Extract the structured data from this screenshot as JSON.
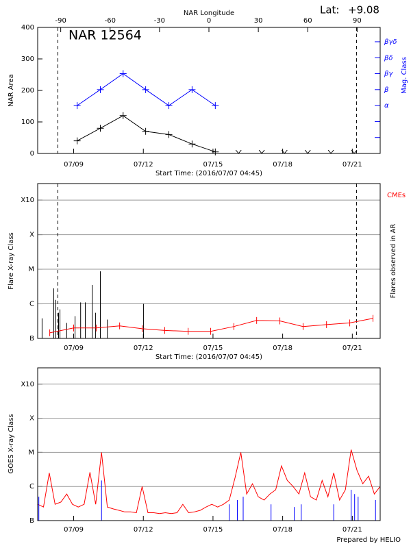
{
  "chart_data": [
    {
      "type": "line",
      "title": "NAR 12564",
      "lat_label": "Lat:",
      "lat_value": "+9.08",
      "x2label": "NAR Longitude",
      "ylabel": "NAR Area",
      "y2label": "Mag. Class",
      "xlabel": "Start Time: (2016/07/07 04:45)",
      "xlim": [
        0.25,
        15
      ],
      "xticks": [
        {
          "value": 1.8,
          "label": "07/09"
        },
        {
          "value": 4.8,
          "label": "07/12"
        },
        {
          "value": 7.8,
          "label": "07/15"
        },
        {
          "value": 10.8,
          "label": "07/18"
        },
        {
          "value": 13.8,
          "label": "07/21"
        }
      ],
      "x2lim": [
        -104,
        104
      ],
      "x2ticks": [
        -90,
        -60,
        -30,
        0,
        30,
        60,
        90
      ],
      "ylim": [
        0,
        400
      ],
      "yticks": [
        0,
        100,
        200,
        300,
        400
      ],
      "y2lim": [
        0,
        7.9
      ],
      "y2color": "#0000ff",
      "y2ticks": [
        {
          "value": 3,
          "label": "α"
        },
        {
          "value": 4,
          "label": "β"
        },
        {
          "value": 5,
          "label": "βγ"
        },
        {
          "value": 6,
          "label": "βδ"
        },
        {
          "value": 7,
          "label": "βγδ"
        }
      ],
      "y2minor_ticks": [
        1,
        2
      ],
      "vlines": [
        1.12,
        13.98
      ],
      "series": [
        {
          "kind": "line",
          "marker": "plus",
          "color": "#000000",
          "x": [
            1.95,
            2.95,
            3.93,
            4.9,
            5.9,
            6.9,
            7.9
          ],
          "values": [
            40,
            80,
            120,
            70,
            60,
            30,
            5
          ]
        },
        {
          "kind": "line",
          "marker": "plus",
          "color": "#0000ff",
          "axis": "y2",
          "x": [
            1.95,
            2.95,
            3.93,
            4.9,
            5.9,
            6.9,
            7.9
          ],
          "values": [
            3,
            4,
            5,
            4,
            3,
            4,
            3
          ]
        },
        {
          "kind": "points",
          "marker": "arrow",
          "color": "#000000",
          "x": [
            8.9,
            9.9,
            10.88,
            11.88,
            12.88,
            13.88
          ],
          "values": [
            0,
            0,
            0,
            0,
            0,
            0
          ]
        }
      ]
    },
    {
      "type": "line",
      "ylabel": "Flare X-ray Class",
      "y2label": "Flares observed in AR",
      "xlabel": "Start Time: (2016/07/07 04:45)",
      "xlim": [
        0.25,
        15
      ],
      "xticks": [
        {
          "value": 1.8,
          "label": "07/09"
        },
        {
          "value": 4.8,
          "label": "07/12"
        },
        {
          "value": 7.8,
          "label": "07/15"
        },
        {
          "value": 10.8,
          "label": "07/18"
        },
        {
          "value": 13.8,
          "label": "07/21"
        }
      ],
      "yscale": "log",
      "ylim": [
        1e-07,
        0.003
      ],
      "grid": true,
      "yticks": [
        {
          "value": 1e-07,
          "label": "B"
        },
        {
          "value": 1e-06,
          "label": "C"
        },
        {
          "value": 1e-05,
          "label": "M"
        },
        {
          "value": 0.0001,
          "label": "X"
        },
        {
          "value": 0.001,
          "label": "X10"
        }
      ],
      "vlines": [
        1.12,
        13.98
      ],
      "series": [
        {
          "kind": "spike",
          "color": "#000000",
          "x": [
            0.44,
            0.94,
            1.03,
            1.15,
            1.21,
            1.5,
            1.86,
            2.1,
            2.3,
            2.6,
            2.74,
            2.95,
            3.25,
            4.81
          ],
          "values": [
            3.8e-07,
            2.8e-06,
            1.3e-06,
            5.5e-07,
            6.9e-07,
            2.8e-07,
            4.4e-07,
            1.1e-06,
            1.1e-06,
            3.5e-06,
            5.5e-07,
            8.7e-06,
            3.5e-07,
            1e-06
          ]
        },
        {
          "kind": "line",
          "marker": "vtick",
          "name": "CMEs",
          "color": "#ff0000",
          "x": [
            0.77,
            1.8,
            2.77,
            3.78,
            4.75,
            5.72,
            6.73,
            7.7,
            8.7,
            9.68,
            10.68,
            11.68,
            12.69,
            13.69,
            14.69
          ],
          "values": [
            1.45e-07,
            2e-07,
            2e-07,
            2.3e-07,
            1.9e-07,
            1.7e-07,
            1.6e-07,
            1.6e-07,
            2.2e-07,
            3.3e-07,
            3.2e-07,
            2.2e-07,
            2.5e-07,
            2.8e-07,
            3.8e-07
          ]
        }
      ]
    },
    {
      "type": "line",
      "ylabel": "GOES X-ray Class",
      "xlim": [
        0.25,
        15
      ],
      "xticks": [
        {
          "value": 1.8,
          "label": "07/09"
        },
        {
          "value": 4.8,
          "label": "07/12"
        },
        {
          "value": 7.8,
          "label": "07/15"
        },
        {
          "value": 10.8,
          "label": "07/18"
        },
        {
          "value": 13.8,
          "label": "07/21"
        }
      ],
      "yscale": "log",
      "ylim": [
        1e-07,
        0.003
      ],
      "grid": true,
      "yticks": [
        {
          "value": 1e-07,
          "label": "B"
        },
        {
          "value": 1e-06,
          "label": "C"
        },
        {
          "value": 1e-05,
          "label": "M"
        },
        {
          "value": 0.0001,
          "label": "X"
        },
        {
          "value": 0.001,
          "label": "X10"
        }
      ],
      "series": [
        {
          "kind": "line",
          "color": "#ff0000",
          "x": [
            0.25,
            0.5,
            0.75,
            1.0,
            1.25,
            1.5,
            1.75,
            2.0,
            2.25,
            2.5,
            2.75,
            3.0,
            3.25,
            3.5,
            3.75,
            4.0,
            4.25,
            4.5,
            4.75,
            5.0,
            5.25,
            5.5,
            5.75,
            6.0,
            6.25,
            6.5,
            6.75,
            7.0,
            7.25,
            7.5,
            7.75,
            8.0,
            8.25,
            8.5,
            8.75,
            9.0,
            9.25,
            9.5,
            9.75,
            10.0,
            10.25,
            10.5,
            10.75,
            11.0,
            11.25,
            11.5,
            11.75,
            12.0,
            12.25,
            12.5,
            12.75,
            13.0,
            13.25,
            13.5,
            13.75,
            14.0,
            14.25,
            14.5,
            14.75,
            15.0
          ],
          "values": [
            3e-07,
            2.5e-07,
            2.5e-06,
            3e-07,
            3.5e-07,
            6e-07,
            3e-07,
            2.5e-07,
            3e-07,
            2.6e-06,
            3e-07,
            1e-05,
            2.5e-07,
            2.2e-07,
            2e-07,
            1.8e-07,
            1.8e-07,
            1.7e-07,
            1e-06,
            1.7e-07,
            1.7e-07,
            1.6e-07,
            1.7e-07,
            1.6e-07,
            1.7e-07,
            3e-07,
            1.7e-07,
            1.8e-07,
            2e-07,
            2.5e-07,
            3e-07,
            2.5e-07,
            3e-07,
            4e-07,
            1.8e-06,
            1e-05,
            6e-07,
            1.2e-06,
            5e-07,
            4e-07,
            6e-07,
            8e-07,
            4e-06,
            1.5e-06,
            1e-06,
            6e-07,
            2.5e-06,
            5e-07,
            4e-07,
            1.5e-06,
            5e-07,
            2.5e-06,
            4e-07,
            8e-07,
            1.2e-05,
            3e-06,
            1.2e-06,
            2e-06,
            6e-07,
            1e-06
          ]
        },
        {
          "kind": "spike",
          "color": "#0000ff",
          "x": [
            0.3,
            3.0,
            8.5,
            8.85,
            9.1,
            10.3,
            11.3,
            11.6,
            13.0,
            13.75,
            13.9,
            14.05,
            14.8
          ],
          "values": [
            5e-07,
            1.5e-06,
            3e-07,
            4e-07,
            5e-07,
            3e-07,
            2.5e-07,
            3e-07,
            3e-07,
            8e-07,
            6e-07,
            5e-07,
            4e-07
          ]
        }
      ]
    }
  ],
  "footer": "Prepared by HELIO"
}
